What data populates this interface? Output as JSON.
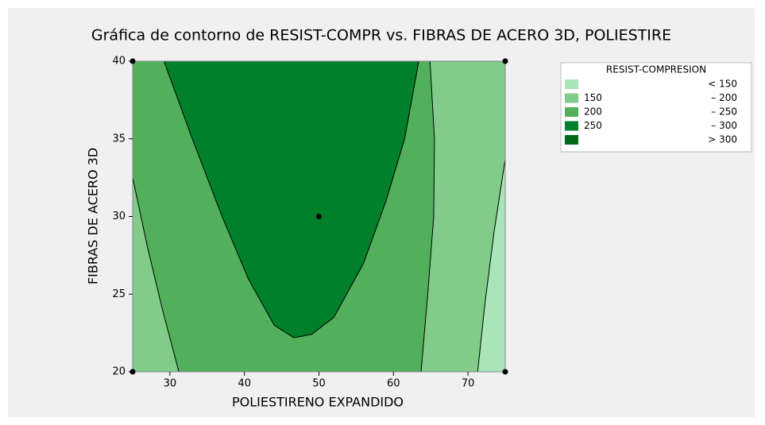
{
  "chart_data": {
    "type": "contour",
    "title": "Gráfica de contorno de RESIST-COMPR vs. FIBRAS DE ACERO 3D, POLIESTIRE",
    "xlabel": "POLIESTIRENO EXPANDIDO",
    "ylabel": "FIBRAS DE ACERO 3D",
    "xlim": [
      25,
      75
    ],
    "ylim": [
      20,
      40
    ],
    "xticks": [
      30,
      40,
      50,
      60,
      70
    ],
    "yticks": [
      20,
      25,
      30,
      35,
      40
    ],
    "legend": {
      "title": "RESIST-COMPRESION",
      "items": [
        {
          "to": "< 150",
          "color": "#a8e6b8"
        },
        {
          "from": "150",
          "to": "– 200",
          "color": "#80cc88"
        },
        {
          "from": "200",
          "to": "– 250",
          "color": "#52b05c"
        },
        {
          "from": "250",
          "to": "– 300",
          "color": "#00802a"
        },
        {
          "to": "> 300",
          "color": "#006a1a"
        }
      ]
    },
    "contours": [
      {
        "level": 250,
        "x": [
          29.2,
          33,
          37,
          40.5,
          44,
          46.6,
          49,
          52,
          56,
          59,
          61.5,
          63.4
        ],
        "y": [
          40,
          35,
          30,
          26,
          23,
          22.2,
          22.4,
          23.5,
          27,
          31,
          35,
          40
        ]
      },
      {
        "level": 200,
        "x": [
          25,
          27,
          29,
          31.2
        ],
        "y": [
          32.5,
          28,
          24,
          20
        ]
      },
      {
        "level": 200,
        "x": [
          64.9,
          65.5,
          65.4,
          64.6,
          63.7
        ],
        "y": [
          40,
          35,
          30,
          25,
          20
        ]
      },
      {
        "level": 150,
        "x": [
          75,
          73.5,
          72.3,
          71.3
        ],
        "y": [
          33.7,
          29,
          24.5,
          20
        ]
      }
    ],
    "points": {
      "x": [
        25,
        25,
        75,
        75,
        50
      ],
      "y": [
        20,
        40,
        20,
        40,
        30
      ]
    }
  }
}
